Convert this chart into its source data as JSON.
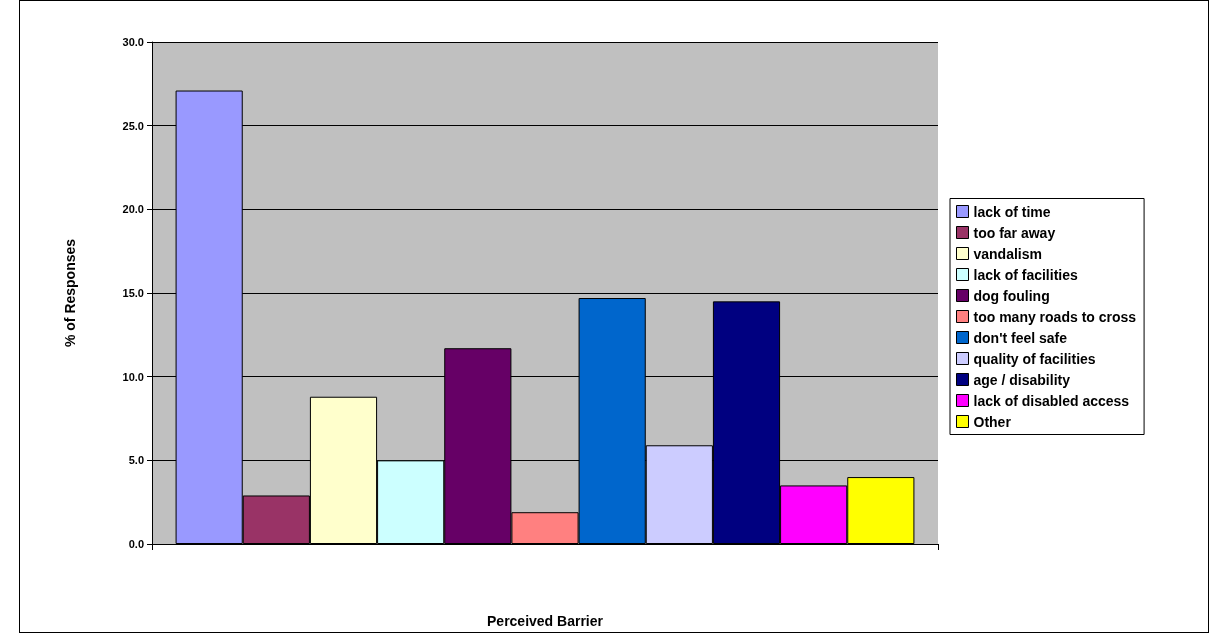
{
  "chart_data": {
    "type": "bar",
    "xlabel": "Perceived Barrier",
    "ylabel": "% of Responses",
    "categories": [
      null
    ],
    "series": [
      {
        "name": "lack of time",
        "color": "#9999ff",
        "values": [
          27.1
        ]
      },
      {
        "name": "too far away",
        "color": "#993366",
        "values": [
          2.9
        ]
      },
      {
        "name": "vandalism",
        "color": "#ffffcc",
        "values": [
          8.8
        ]
      },
      {
        "name": "lack of facilities",
        "color": "#ccffff",
        "values": [
          5.0
        ]
      },
      {
        "name": "dog fouling",
        "color": "#660066",
        "values": [
          11.7
        ]
      },
      {
        "name": "too many roads to cross",
        "color": "#ff8080",
        "values": [
          1.9
        ]
      },
      {
        "name": "don't feel safe",
        "color": "#0066cc",
        "values": [
          14.7
        ]
      },
      {
        "name": "quality of facilities",
        "color": "#ccccff",
        "values": [
          5.9
        ]
      },
      {
        "name": "age / disability",
        "color": "#000080",
        "values": [
          14.5
        ]
      },
      {
        "name": "lack of disabled access",
        "color": "#ff00ff",
        "values": [
          3.5
        ]
      },
      {
        "name": "Other",
        "color": "#ffff00",
        "values": [
          4.0
        ]
      }
    ],
    "ylim": [
      0,
      30
    ],
    "yticks": [
      {
        "value": 0,
        "label": "0.0"
      },
      {
        "value": 5,
        "label": "5.0"
      },
      {
        "value": 10,
        "label": "10.0"
      },
      {
        "value": 15,
        "label": "15.0"
      },
      {
        "value": 20,
        "label": "20.0"
      },
      {
        "value": 25,
        "label": "25.0"
      },
      {
        "value": 30,
        "label": "30.0"
      }
    ],
    "grid": "y",
    "legend": "right"
  }
}
